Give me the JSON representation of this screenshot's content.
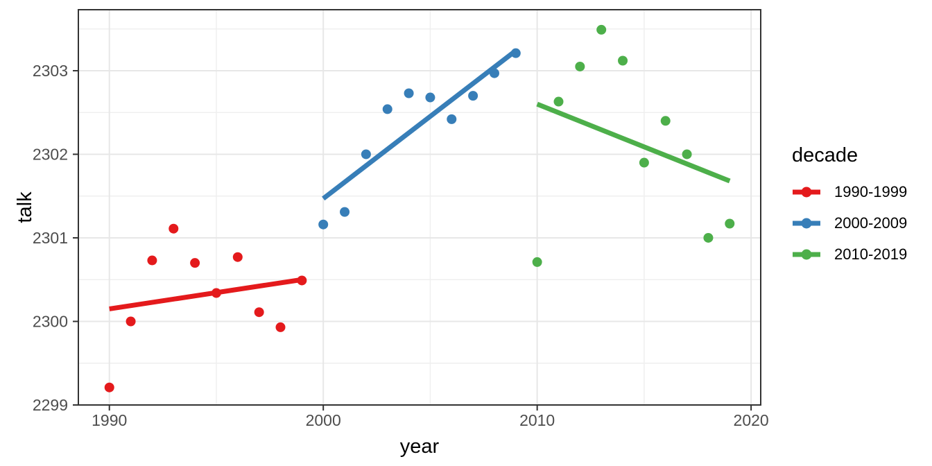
{
  "figure": {
    "background_color": "#FFFFFF"
  },
  "chart_data": {
    "type": "scatter",
    "title": "",
    "xlabel": "year",
    "ylabel": "talk",
    "legend_title": "decade",
    "legend_position": "right",
    "grid": true,
    "xlim": [
      1988.55,
      2020.45
    ],
    "ylim": [
      2299.0,
      2303.73
    ],
    "x_major_ticks": [
      1990,
      2000,
      2010,
      2020
    ],
    "x_minor_gridlines": [
      1995,
      2005,
      2015
    ],
    "y_major_ticks": [
      2299,
      2300,
      2301,
      2302,
      2303
    ],
    "y_minor_gridlines": [
      2299.5,
      2300.5,
      2301.5,
      2302.5,
      2303.5
    ],
    "series": [
      {
        "name": "1990-1999",
        "color": "#E41A1C",
        "x": [
          1990,
          1991,
          1992,
          1993,
          1994,
          1995,
          1996,
          1997,
          1998,
          1999
        ],
        "y": [
          2299.21,
          2300.0,
          2300.73,
          2301.11,
          2300.7,
          2300.34,
          2300.77,
          2300.11,
          2299.93,
          2300.49
        ],
        "trend": {
          "x": [
            1990,
            1999
          ],
          "y": [
            2300.15,
            2300.5
          ]
        }
      },
      {
        "name": "2000-2009",
        "color": "#377EB8",
        "x": [
          2000,
          2001,
          2002,
          2003,
          2004,
          2005,
          2006,
          2007,
          2008,
          2009
        ],
        "y": [
          2301.16,
          2301.31,
          2302.0,
          2302.54,
          2302.73,
          2302.68,
          2302.42,
          2302.7,
          2302.97,
          2303.21
        ],
        "trend": {
          "x": [
            2000,
            2009
          ],
          "y": [
            2301.47,
            2303.24
          ]
        }
      },
      {
        "name": "2010-2019",
        "color": "#4DAF4A",
        "x": [
          2010,
          2011,
          2012,
          2013,
          2014,
          2015,
          2016,
          2017,
          2018,
          2019
        ],
        "y": [
          2300.71,
          2302.63,
          2303.05,
          2303.49,
          2303.12,
          2301.9,
          2302.4,
          2302.0,
          2301.0,
          2301.17
        ],
        "trend": {
          "x": [
            2010,
            2019
          ],
          "y": [
            2302.6,
            2301.68
          ]
        }
      }
    ],
    "style": {
      "point_radius": 7,
      "trend_line_width": 7,
      "panel_border_color": "#333333",
      "tick_color": "#333333",
      "grid_major_color": "#E7E7E7",
      "grid_minor_color": "#EFEFEF",
      "tick_label_color": "#4D4D4D",
      "axis_title_color": "#000000"
    }
  }
}
